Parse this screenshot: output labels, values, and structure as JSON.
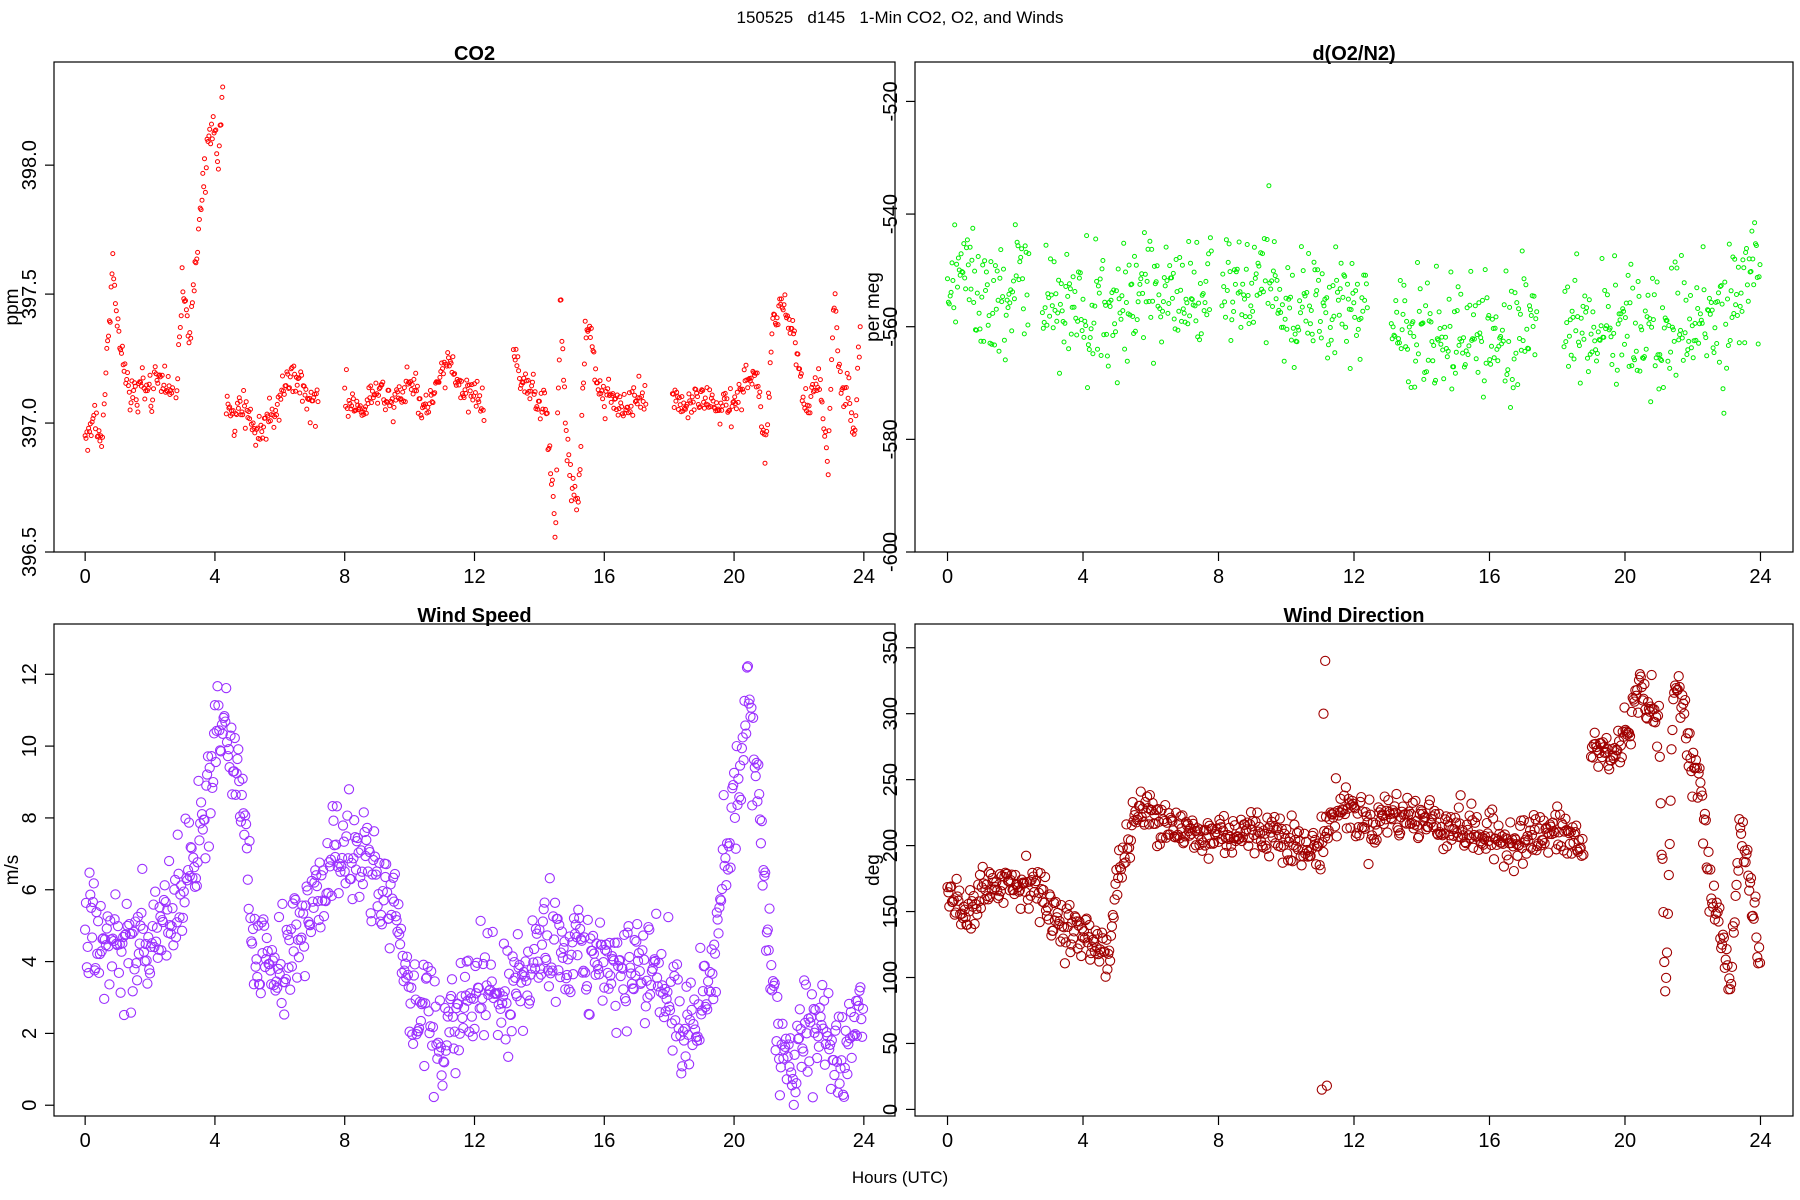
{
  "figure": {
    "title": "150525   d145   1-Min CO2, O2, and Winds",
    "xlabel": "Hours (UTC)"
  },
  "chart_data": [
    {
      "id": "co2",
      "type": "scatter",
      "title": "CO2",
      "xlabel": "",
      "ylabel": "ppm",
      "xlim": [
        -0.96,
        24.96
      ],
      "ylim": [
        396.5,
        398.4
      ],
      "xticks": [
        0,
        4,
        8,
        12,
        16,
        20,
        24
      ],
      "yticks": [
        396.5,
        397.0,
        397.5,
        398.0
      ],
      "ytick_labels": [
        "396.5",
        "397.0",
        "397.5",
        "398.0"
      ],
      "grid": false,
      "color": "#ff0000",
      "marker_size": "small",
      "segments": [
        {
          "t": [
            0.0,
            0.3,
            0.5,
            0.7,
            0.85,
            1.0,
            1.2,
            1.4,
            1.7,
            2.0,
            2.3,
            2.5,
            2.7
          ],
          "v": [
            396.95,
            397.05,
            396.9,
            397.3,
            397.6,
            397.4,
            397.2,
            397.1,
            397.15,
            397.1,
            397.2,
            397.1,
            397.15
          ]
        },
        {
          "t": [
            2.8,
            3.0,
            3.2,
            3.4,
            3.6,
            3.8,
            3.95,
            4.1,
            4.25
          ],
          "v": [
            397.1,
            397.55,
            397.3,
            397.6,
            397.9,
            398.1,
            398.2,
            398.0,
            398.3
          ]
        },
        {
          "t": [
            4.35,
            4.6,
            4.9,
            5.2,
            5.5,
            5.8,
            6.0,
            6.3,
            6.6,
            6.9,
            7.2
          ],
          "v": [
            397.1,
            397.0,
            397.1,
            396.95,
            397.0,
            397.05,
            397.1,
            397.2,
            397.15,
            397.1,
            397.08
          ]
        },
        {
          "t": [
            8.0,
            8.5,
            9.0,
            9.5,
            10.0,
            10.5,
            10.8,
            11.1,
            11.4,
            11.7,
            12.0,
            12.3
          ],
          "v": [
            397.1,
            397.05,
            397.12,
            397.08,
            397.15,
            397.05,
            397.1,
            397.25,
            397.2,
            397.1,
            397.12,
            397.05
          ]
        },
        {
          "t": [
            13.2,
            13.5,
            13.9,
            14.2,
            14.5,
            14.65,
            14.8,
            15.0,
            15.2,
            15.45,
            15.6,
            15.8,
            16.2,
            16.6,
            17.0,
            17.3
          ],
          "v": [
            397.25,
            397.15,
            397.1,
            397.05,
            396.6,
            397.5,
            397.0,
            396.75,
            396.7,
            397.4,
            397.35,
            397.1,
            397.1,
            397.05,
            397.1,
            397.05
          ]
        },
        {
          "t": [
            18.1,
            18.5,
            19.0,
            19.5,
            20.0,
            20.4,
            20.6,
            20.8,
            20.95,
            21.2,
            21.5,
            21.8,
            22.0,
            22.3,
            22.6,
            22.9,
            23.1,
            23.3,
            23.5,
            23.7,
            23.9
          ],
          "v": [
            397.1,
            397.05,
            397.1,
            397.05,
            397.08,
            397.15,
            397.2,
            397.1,
            396.85,
            397.4,
            397.45,
            397.35,
            397.2,
            397.05,
            397.2,
            396.85,
            397.5,
            397.1,
            397.15,
            396.9,
            397.4
          ]
        }
      ],
      "noise": 0.035
    },
    {
      "id": "o2",
      "type": "scatter",
      "title": "d(O2/N2)",
      "xlabel": "",
      "ylabel": "per meg",
      "xlim": [
        -0.96,
        24.96
      ],
      "ylim": [
        -600,
        -513
      ],
      "xticks": [
        0,
        4,
        8,
        12,
        16,
        20,
        24
      ],
      "yticks": [
        -600,
        -580,
        -560,
        -540,
        -520
      ],
      "ytick_labels": [
        "-600",
        "-580",
        "-560",
        "-540",
        "-520"
      ],
      "grid": false,
      "color": "#00ee00",
      "marker_size": "small",
      "segments": [
        {
          "t": [
            0.0,
            0.5,
            1.0,
            1.5,
            2.0,
            2.4
          ],
          "v": [
            -553,
            -550,
            -553,
            -555,
            -554,
            -553
          ]
        },
        {
          "t": [
            2.8,
            3.5,
            4.0,
            4.5,
            5.0,
            5.5,
            6.0,
            6.5,
            7.0,
            7.5,
            7.8
          ],
          "v": [
            -556,
            -557,
            -560,
            -558,
            -556,
            -554,
            -553,
            -555,
            -554,
            -555,
            -552
          ]
        },
        {
          "t": [
            8.1,
            8.5,
            9.0,
            9.5,
            10.0,
            10.5,
            11.0,
            11.5,
            12.0,
            12.4
          ],
          "v": [
            -554,
            -553,
            -552,
            -554,
            -556,
            -555,
            -557,
            -558,
            -559,
            -558
          ]
        },
        {
          "t": [
            13.1,
            13.5,
            14.0,
            14.5,
            15.0,
            15.5,
            16.0,
            16.5,
            17.0,
            17.4
          ],
          "v": [
            -560,
            -561,
            -562,
            -561,
            -560,
            -561,
            -562,
            -560,
            -561,
            -560
          ]
        },
        {
          "t": [
            18.2,
            18.5,
            19.0,
            19.5,
            20.0,
            20.5,
            21.0,
            21.5,
            22.0,
            22.5,
            23.0,
            23.5,
            24.0
          ],
          "v": [
            -560,
            -559,
            -560,
            -561,
            -560,
            -562,
            -561,
            -560,
            -559,
            -560,
            -556,
            -555,
            -553
          ]
        }
      ],
      "noise": 5.5
    },
    {
      "id": "wind-speed",
      "type": "scatter",
      "title": "Wind Speed",
      "xlabel": "",
      "ylabel": "m/s",
      "xlim": [
        -0.96,
        24.96
      ],
      "ylim": [
        -0.3,
        13.4
      ],
      "xticks": [
        0,
        4,
        8,
        12,
        16,
        20,
        24
      ],
      "yticks": [
        0,
        2,
        4,
        6,
        8,
        10,
        12
      ],
      "ytick_labels": [
        "0",
        "2",
        "4",
        "6",
        "8",
        "10",
        "12"
      ],
      "grid": false,
      "color": "#9b30ff",
      "marker_size": "large",
      "segments": [
        {
          "t": [
            0.0,
            0.5,
            1.0,
            1.5,
            2.0,
            2.5,
            3.0,
            3.5,
            3.8,
            4.0,
            4.3,
            4.6,
            4.9,
            5.2,
            5.6,
            6.0,
            6.5,
            7.0,
            7.5,
            8.0,
            8.5,
            9.0,
            9.5,
            10.0,
            10.4,
            10.8,
            11.1,
            11.5,
            12.0,
            12.5,
            13.0,
            13.5,
            14.0,
            14.5,
            15.0,
            16.0,
            17.0,
            18.0,
            18.5,
            19.0,
            19.3,
            19.6,
            19.9,
            20.2,
            20.4,
            20.6,
            20.8,
            21.1,
            21.4,
            21.8,
            22.2,
            22.6,
            23.0,
            23.4,
            23.8,
            24.0
          ],
          "v": [
            5.2,
            4.2,
            4.8,
            4.0,
            4.6,
            5.0,
            6.0,
            7.5,
            9.0,
            10.5,
            10.8,
            9.5,
            8.5,
            4.5,
            4.2,
            3.8,
            4.5,
            5.5,
            6.5,
            7.3,
            6.8,
            6.0,
            5.5,
            3.2,
            2.5,
            2.0,
            1.5,
            2.7,
            3.0,
            3.3,
            2.8,
            3.5,
            4.5,
            4.2,
            4.0,
            3.8,
            3.8,
            3.0,
            2.0,
            2.5,
            3.5,
            6.0,
            8.0,
            9.5,
            11.5,
            10.0,
            8.0,
            4.0,
            1.8,
            1.2,
            1.8,
            2.2,
            1.6,
            1.0,
            2.5,
            3.5
          ]
        }
      ],
      "noise": 0.75
    },
    {
      "id": "wind-direction",
      "type": "scatter",
      "title": "Wind Direction",
      "xlabel": "",
      "ylabel": "deg",
      "xlim": [
        -0.96,
        24.96
      ],
      "ylim": [
        -5,
        368
      ],
      "xticks": [
        0,
        4,
        8,
        12,
        16,
        20,
        24
      ],
      "yticks": [
        0,
        50,
        100,
        150,
        200,
        250,
        300,
        350
      ],
      "ytick_labels": [
        "0",
        "50",
        "100",
        "150",
        "200",
        "250",
        "300",
        "350"
      ],
      "grid": false,
      "color": "#a00000",
      "marker_size": "large",
      "segments": [
        {
          "t": [
            0.0,
            0.5,
            1.0,
            1.5,
            2.0,
            2.5,
            3.0,
            3.5,
            4.0,
            4.5,
            4.8,
            5.0,
            5.3,
            5.6,
            6.0,
            6.5,
            7.0,
            7.5,
            8.0,
            9.0,
            10.0,
            10.5,
            11.0,
            11.3,
            11.6,
            12.0,
            12.5,
            13.0,
            14.0,
            15.0,
            16.0,
            17.0,
            18.0,
            18.5,
            18.8
          ],
          "v": [
            165,
            150,
            165,
            175,
            170,
            175,
            150,
            140,
            130,
            125,
            120,
            175,
            200,
            225,
            225,
            220,
            210,
            205,
            210,
            210,
            210,
            195,
            200,
            220,
            230,
            225,
            215,
            225,
            220,
            215,
            205,
            205,
            210,
            205,
            195
          ]
        },
        {
          "t": [
            19.0,
            19.3,
            19.6,
            19.9,
            20.2,
            20.5,
            20.8,
            21.0,
            21.2,
            21.4,
            21.6,
            21.9,
            22.2,
            22.5,
            22.8,
            23.1,
            23.4,
            23.7,
            24.0
          ],
          "v": [
            270,
            275,
            265,
            280,
            300,
            320,
            305,
            290,
            70,
            300,
            330,
            270,
            250,
            170,
            140,
            90,
            220,
            170,
            105
          ]
        }
      ],
      "noise": 9,
      "outliers": {
        "t": [
          11.05,
          11.1,
          11.15,
          11.2
        ],
        "v": [
          15,
          300,
          340,
          18
        ]
      }
    }
  ]
}
